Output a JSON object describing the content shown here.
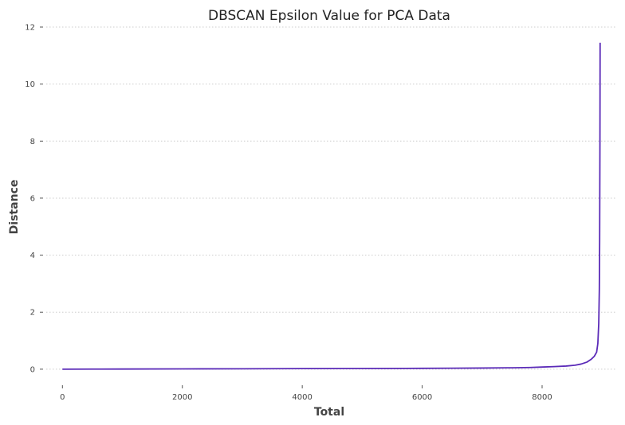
{
  "chart_data": {
    "type": "line",
    "title": "DBSCAN Epsilon Value for PCA Data",
    "xlabel": "Total",
    "ylabel": "Distance",
    "xlim": [
      -270,
      9250
    ],
    "ylim": [
      -0.45,
      12
    ],
    "xticks": [
      0,
      2000,
      4000,
      6000,
      8000
    ],
    "yticks": [
      0,
      2,
      4,
      6,
      8,
      10,
      12
    ],
    "grid": "horizontal dotted",
    "line_color": "#5b2bb8",
    "series": [
      {
        "x": [
          0,
          500,
          1000,
          2000,
          3000,
          4000,
          5000,
          6000,
          6500,
          7000,
          7500,
          7800,
          8000,
          8200,
          8400,
          8550,
          8650,
          8750,
          8820,
          8870,
          8910,
          8930,
          8945,
          8955,
          8960,
          8965,
          8968
        ],
        "y": [
          0.0,
          0.003,
          0.005,
          0.01,
          0.015,
          0.02,
          0.025,
          0.03,
          0.035,
          0.04,
          0.05,
          0.06,
          0.075,
          0.09,
          0.11,
          0.14,
          0.18,
          0.25,
          0.35,
          0.45,
          0.6,
          0.9,
          1.6,
          2.8,
          4.5,
          8.0,
          11.45
        ]
      }
    ]
  }
}
